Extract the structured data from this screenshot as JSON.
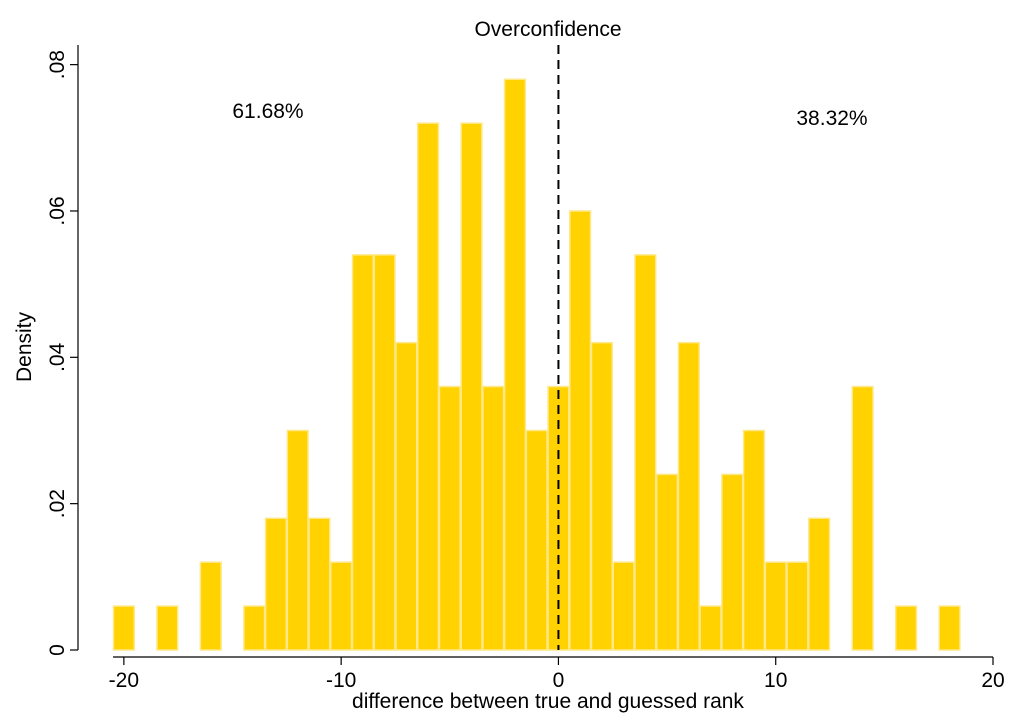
{
  "chart_data": {
    "type": "histogram",
    "title": "Overconfidence",
    "x_label": "difference between true and guessed rank",
    "y_label": "Density",
    "bins": [
      -20.5,
      -19.5,
      -18.5,
      -17.5,
      -16.5,
      -15.5,
      -14.5,
      -13.5,
      -12.5,
      -11.5,
      -10.5,
      -9.5,
      -8.5,
      -7.5,
      -6.5,
      -5.5,
      -4.5,
      -3.5,
      -2.5,
      -1.5,
      -0.5,
      0.5,
      1.5,
      2.5,
      3.5,
      4.5,
      5.5,
      6.5,
      7.5,
      8.5,
      9.5,
      10.5,
      11.5,
      12.5,
      13.5,
      14.5,
      15.5,
      16.5,
      17.5,
      18.5
    ],
    "values": [
      0.006,
      0,
      0.006,
      0,
      0.012,
      0,
      0.006,
      0.018,
      0.03,
      0.018,
      0.012,
      0.054,
      0.054,
      0.042,
      0.072,
      0.036,
      0.072,
      0.036,
      0.078,
      0.03,
      0.036,
      0.06,
      0.042,
      0.012,
      0.054,
      0.024,
      0.042,
      0.006,
      0.024,
      0.03,
      0.012,
      0.012,
      0.018,
      0,
      0.036,
      0,
      0.006,
      0,
      0.006
    ],
    "color": "#ffd200",
    "xlim": [
      -20.5,
      20
    ],
    "xticks": [
      -20,
      -10,
      0,
      10,
      20
    ],
    "ylim": [
      0,
      0.082
    ],
    "yticks": [
      0,
      {
        "value": 0.02,
        "label": ".02"
      },
      {
        "value": 0.04,
        "label": ".04"
      },
      {
        "value": 0.06,
        "label": ".06"
      },
      {
        "value": 0.08,
        "label": ".08"
      }
    ],
    "xline": 0,
    "annotations": [
      "61.68%",
      "38.32%"
    ]
  }
}
